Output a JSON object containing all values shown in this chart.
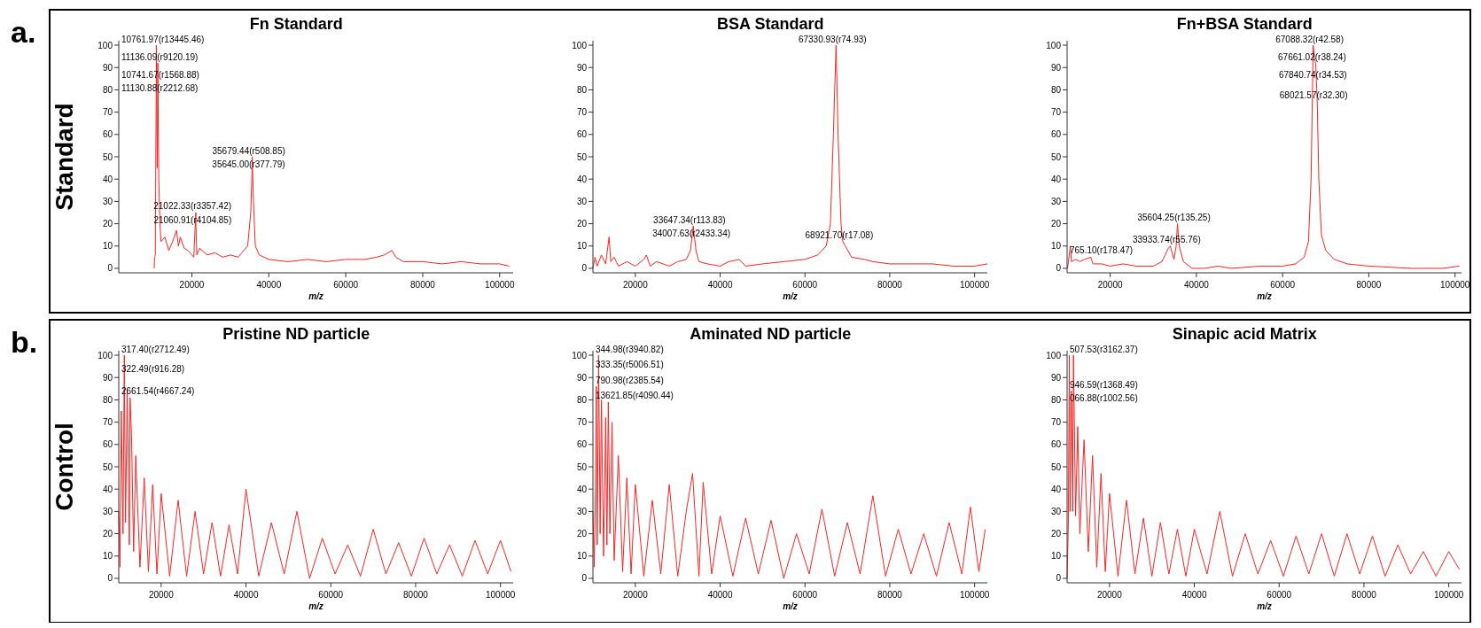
{
  "chart_data": [
    {
      "type": "line",
      "title": "Fn Standard",
      "xlabel": "m/z",
      "ylabel": "Standard",
      "xlim": [
        1000,
        103500
      ],
      "ylim": [
        -2,
        102
      ],
      "xticks": [
        20000,
        40000,
        60000,
        80000,
        100000
      ],
      "yticks": [
        0,
        10,
        20,
        30,
        40,
        50,
        60,
        70,
        80,
        90,
        100
      ],
      "series": [
        {
          "color": "#fb2424",
          "x": [
            10200,
            10300,
            10500,
            10741.67,
            10761.97,
            11000,
            11130.88,
            11136.09,
            11400,
            11700,
            12000,
            13000,
            14000,
            15000,
            16000,
            16500,
            17000,
            18000,
            19000,
            20000,
            20500,
            21022.33,
            21060.91,
            21300,
            22000,
            24000,
            26000,
            28000,
            30000,
            32000,
            33000,
            34500,
            35300,
            35645,
            35679.44,
            36000,
            36500,
            37500,
            40000,
            45000,
            50000,
            55000,
            60000,
            65000,
            68000,
            70000,
            72000,
            73000,
            75000,
            80000,
            85000,
            90000,
            95000,
            100000,
            102500
          ],
          "values": [
            0,
            5,
            6,
            84,
            100,
            45,
            78,
            92,
            40,
            20,
            12,
            14,
            8,
            12,
            17,
            10,
            14,
            9,
            8,
            6,
            5,
            25,
            19,
            6,
            9,
            6,
            7,
            5,
            6,
            5,
            7,
            10,
            25,
            44,
            50,
            30,
            10,
            6,
            4,
            3,
            4,
            3,
            4,
            4,
            5,
            6,
            8,
            5,
            3,
            3,
            2,
            3,
            2,
            2,
            1
          ]
        }
      ],
      "annotations": [
        "a.",
        {
          "text": "10761.97(r13445.46)",
          "x": 10761.97,
          "y": 100
        },
        {
          "text": "11136.09(r9120.19)",
          "x": 11136.09,
          "y": 92
        },
        {
          "text": "10741.67(r1568.88)",
          "x": 10741.67,
          "y": 84
        },
        {
          "text": "11130.88(r2212.68)",
          "x": 11130.88,
          "y": 78
        },
        {
          "text": "35679.44(r508.85)",
          "x": 35679.44,
          "y": 50
        },
        {
          "text": "35645.00(r377.79)",
          "x": 35645,
          "y": 44
        },
        {
          "text": "21022.33(r3357.42)",
          "x": 21022.33,
          "y": 25
        },
        {
          "text": "21060.91(r4104.85)",
          "x": 21060.91,
          "y": 19
        }
      ]
    },
    {
      "type": "line",
      "title": "BSA Standard",
      "xlabel": "m/z",
      "xlim": [
        10000,
        103000
      ],
      "ylim": [
        -2,
        102
      ],
      "xticks": [
        20000,
        40000,
        60000,
        80000,
        100000
      ],
      "yticks": [
        0,
        10,
        20,
        30,
        40,
        50,
        60,
        70,
        80,
        90,
        100
      ],
      "series": [
        {
          "color": "#fb2424",
          "x": [
            10000,
            10500,
            11000,
            12000,
            13000,
            13800,
            14200,
            15000,
            16000,
            18000,
            20000,
            22000,
            22600,
            23500,
            25000,
            28000,
            30000,
            32000,
            33000,
            33647.34,
            34007.63,
            34300,
            35000,
            37000,
            40000,
            42000,
            44500,
            46000,
            50000,
            55000,
            60000,
            63000,
            65000,
            66000,
            66700,
            67330.93,
            67800,
            68500,
            68921.7,
            69500,
            71000,
            74000,
            76000,
            80000,
            85000,
            90000,
            95000,
            100000,
            103000
          ],
          "values": [
            0,
            5,
            1,
            6,
            2,
            14,
            3,
            5,
            1,
            3,
            1,
            4,
            6,
            1,
            3,
            1,
            3,
            4,
            8,
            19,
            13,
            8,
            3,
            2,
            1,
            3,
            4,
            1,
            2,
            3,
            4,
            6,
            10,
            20,
            60,
            100,
            60,
            20,
            12,
            10,
            5,
            4,
            3,
            2,
            2,
            2,
            1,
            1,
            2
          ]
        }
      ],
      "annotations": [
        {
          "text": "67330.93(r74.93)",
          "x": 67330.93,
          "y": 100
        },
        {
          "text": "33647.34(r113.83)",
          "x": 33647.34,
          "y": 19
        },
        {
          "text": "34007.63(r2433.34)",
          "x": 34007.63,
          "y": 13
        },
        {
          "text": "68921.70(r17.08)",
          "x": 68921.7,
          "y": 12
        }
      ]
    },
    {
      "type": "line",
      "title": "Fn+BSA Standard",
      "xlabel": "m/z",
      "xlim": [
        10000,
        101500
      ],
      "ylim": [
        -2,
        102
      ],
      "xticks": [
        20000,
        40000,
        60000,
        80000,
        100000
      ],
      "yticks": [
        0,
        10,
        20,
        30,
        40,
        50,
        60,
        70,
        80,
        90,
        100
      ],
      "series": [
        {
          "color": "#fb2424",
          "x": [
            10100,
            10765.1,
            11000,
            12000,
            13000,
            14000,
            15500,
            16000,
            18000,
            20000,
            23000,
            26000,
            30000,
            32000,
            33500,
            33933.74,
            34800,
            35300,
            35604.25,
            36000,
            37000,
            39000,
            42000,
            45000,
            48000,
            55000,
            60000,
            63000,
            65000,
            66000,
            66600,
            67088.32,
            67400,
            67661.02,
            67840.74,
            68021.57,
            68400,
            69000,
            70000,
            72000,
            75000,
            80000,
            90000,
            97000,
            101000
          ],
          "values": [
            0,
            10,
            3,
            4,
            3,
            4,
            5,
            2,
            2,
            1,
            2,
            1,
            1,
            3,
            9,
            10,
            4,
            10,
            20,
            10,
            3,
            0,
            0,
            1,
            0,
            1,
            1,
            2,
            5,
            12,
            40,
            100,
            94,
            92,
            84,
            75,
            40,
            15,
            8,
            4,
            2,
            1,
            0,
            0,
            1
          ]
        }
      ],
      "annotations": [
        {
          "text": "67088.32(r42.58)",
          "x": 67088.32,
          "y": 100
        },
        {
          "text": "67661.02(r38.24)",
          "x": 67661.02,
          "y": 92
        },
        {
          "text": "67840.74(r34.53)",
          "x": 67840.74,
          "y": 84
        },
        {
          "text": "68021.57(r32.30)",
          "x": 68021.57,
          "y": 75
        },
        {
          "text": "35604.25(r135.25)",
          "x": 35604.25,
          "y": 20
        },
        {
          "text": "33933.74(r55.76)",
          "x": 33933.74,
          "y": 10
        },
        {
          "text": "765.10(r178.47)",
          "x": 10765.1,
          "y": 10
        }
      ]
    },
    {
      "type": "line",
      "title": "Pristine ND particle",
      "xlabel": "m/z",
      "ylabel": "Control",
      "xlim": [
        10000,
        103000
      ],
      "ylim": [
        -2,
        102
      ],
      "xticks": [
        20000,
        40000,
        60000,
        80000,
        100000
      ],
      "yticks": [
        0,
        10,
        20,
        30,
        40,
        50,
        60,
        70,
        80,
        90,
        100
      ],
      "series": [
        {
          "color": "#fb2424",
          "x": [
            10000,
            10300,
            10600,
            11000,
            11317.4,
            11322.49,
            11600,
            12000,
            12500,
            12661.54,
            13000,
            13500,
            14000,
            15000,
            16000,
            17000,
            18000,
            19000,
            20000,
            22000,
            24000,
            26000,
            28000,
            30000,
            32000,
            34000,
            36000,
            38000,
            40000,
            43000,
            46000,
            49000,
            52000,
            55000,
            58000,
            61000,
            64000,
            67000,
            70000,
            73000,
            76000,
            79000,
            82000,
            85000,
            88000,
            91000,
            94000,
            97000,
            100000,
            102500
          ],
          "values": [
            30,
            5,
            75,
            20,
            100,
            91,
            25,
            85,
            15,
            81,
            65,
            12,
            55,
            5,
            45,
            3,
            42,
            2,
            38,
            1,
            35,
            1,
            30,
            2,
            25,
            1,
            24,
            2,
            40,
            1,
            25,
            2,
            30,
            0,
            18,
            2,
            15,
            1,
            22,
            2,
            16,
            1,
            18,
            2,
            15,
            1,
            17,
            2,
            17,
            3
          ]
        }
      ],
      "annotations": [
        "b.",
        {
          "text": "317.40(r2712.49)",
          "x": 11317.4,
          "y": 100
        },
        {
          "text": "322.49(r916.28)",
          "x": 11322.49,
          "y": 91
        },
        {
          "text": "2661.54(r4667.24)",
          "x": 12661.54,
          "y": 81
        }
      ]
    },
    {
      "type": "line",
      "title": "Aminated ND particle",
      "xlabel": "m/z",
      "xlim": [
        10000,
        103000
      ],
      "ylim": [
        -2,
        102
      ],
      "xticks": [
        20000,
        40000,
        60000,
        80000,
        100000
      ],
      "yticks": [
        0,
        10,
        20,
        30,
        40,
        50,
        60,
        70,
        80,
        90,
        100
      ],
      "series": [
        {
          "color": "#fb2424",
          "x": [
            10000,
            10300,
            10600,
            10790.98,
            11000,
            11333.35,
            11344.98,
            11700,
            12000,
            12500,
            13000,
            13300,
            13621.85,
            14000,
            14500,
            15000,
            16000,
            17000,
            18000,
            19000,
            20000,
            22000,
            24000,
            26000,
            28000,
            30000,
            32000,
            33500,
            35000,
            36000,
            38000,
            40000,
            43000,
            46000,
            49000,
            52000,
            55000,
            58000,
            61000,
            64000,
            67000,
            70000,
            73000,
            76000,
            79000,
            82000,
            85000,
            88000,
            91000,
            94000,
            97000,
            99000,
            101000,
            102500
          ],
          "values": [
            30,
            5,
            40,
            86,
            15,
            93,
            100,
            20,
            80,
            10,
            72,
            15,
            79,
            20,
            70,
            8,
            55,
            3,
            45,
            2,
            42,
            1,
            35,
            2,
            42,
            1,
            30,
            47,
            1,
            43,
            2,
            28,
            1,
            27,
            2,
            26,
            0,
            20,
            2,
            31,
            1,
            25,
            2,
            37,
            1,
            22,
            2,
            20,
            1,
            25,
            2,
            32,
            3,
            22
          ]
        }
      ],
      "annotations": [
        {
          "text": "344.98(r3940.82)",
          "x": 11344.98,
          "y": 100
        },
        {
          "text": "333.35(r5006.51)",
          "x": 11333.35,
          "y": 93
        },
        {
          "text": "790.98(r2385.54)",
          "x": 10790.98,
          "y": 86
        },
        {
          "text": "13621.85(r4090.44)",
          "x": 13621.85,
          "y": 79
        }
      ]
    },
    {
      "type": "line",
      "title": "Sinapic acid Matrix",
      "xlabel": "m/z",
      "xlim": [
        10000,
        103000
      ],
      "ylim": [
        -2,
        102
      ],
      "xticks": [
        20000,
        40000,
        60000,
        80000,
        100000
      ],
      "yticks": [
        0,
        10,
        20,
        30,
        40,
        50,
        60,
        70,
        80,
        90,
        100
      ],
      "series": [
        {
          "color": "#fb2424",
          "x": [
            10000,
            10300,
            10507.53,
            10700,
            10946.59,
            11066.88,
            11300,
            11500,
            12000,
            12500,
            13000,
            14000,
            15000,
            16000,
            17000,
            18000,
            19000,
            20000,
            22000,
            24000,
            26000,
            28000,
            30000,
            32000,
            34000,
            36000,
            38000,
            40000,
            43000,
            46000,
            49000,
            52000,
            55000,
            58000,
            61000,
            64000,
            67000,
            70000,
            73000,
            76000,
            79000,
            82000,
            85000,
            88000,
            91000,
            94000,
            97000,
            100000,
            102500
          ],
          "values": [
            0,
            25,
            100,
            30,
            84,
            78,
            30,
            100,
            28,
            68,
            20,
            62,
            12,
            55,
            5,
            47,
            3,
            38,
            1,
            35,
            2,
            27,
            1,
            25,
            2,
            22,
            1,
            22,
            2,
            30,
            1,
            20,
            2,
            17,
            1,
            19,
            2,
            20,
            1,
            20,
            2,
            19,
            1,
            15,
            2,
            12,
            1,
            12,
            4
          ]
        }
      ],
      "annotations": [
        {
          "text": "507.53(r3162.37)",
          "x": 10507.53,
          "y": 100
        },
        {
          "text": "946.59(r1368.49)",
          "x": 10946.59,
          "y": 84
        },
        {
          "text": "066.88(r1002.56)",
          "x": 11066.88,
          "y": 78
        }
      ]
    }
  ]
}
